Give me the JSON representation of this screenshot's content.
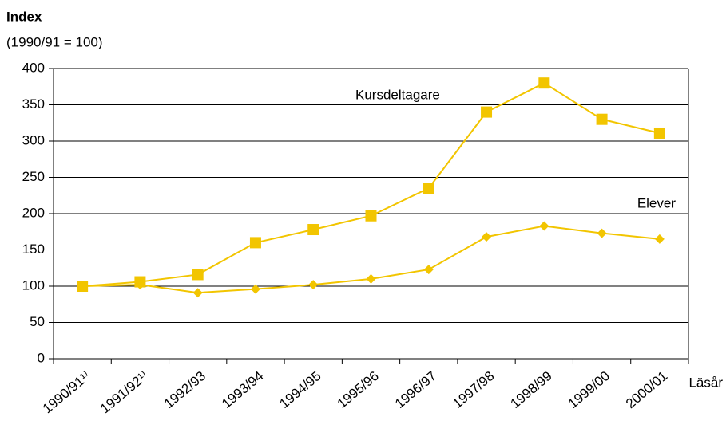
{
  "chart_data": {
    "type": "line",
    "title": "Index",
    "subtitle": "(1990/91 = 100)",
    "x_label": "Läsår",
    "categories": [
      "1990/91¹⁾",
      "1991/92¹⁾",
      "1992/93",
      "1993/94",
      "1994/95",
      "1995/96",
      "1996/97",
      "1997/98",
      "1998/99",
      "1999/00",
      "2000/01"
    ],
    "series": [
      {
        "name": "Kursdeltagare",
        "color": "#f2c500",
        "marker": "square",
        "values": [
          100,
          106,
          116,
          160,
          178,
          197,
          235,
          340,
          380,
          330,
          311
        ]
      },
      {
        "name": "Elever",
        "color": "#f2c500",
        "marker": "diamond",
        "values": [
          100,
          102,
          91,
          96,
          102,
          110,
          123,
          168,
          183,
          173,
          165
        ]
      }
    ],
    "ylim": [
      0,
      400
    ],
    "yticks": [
      0,
      50,
      100,
      150,
      200,
      250,
      300,
      350,
      400
    ],
    "grid": true
  }
}
